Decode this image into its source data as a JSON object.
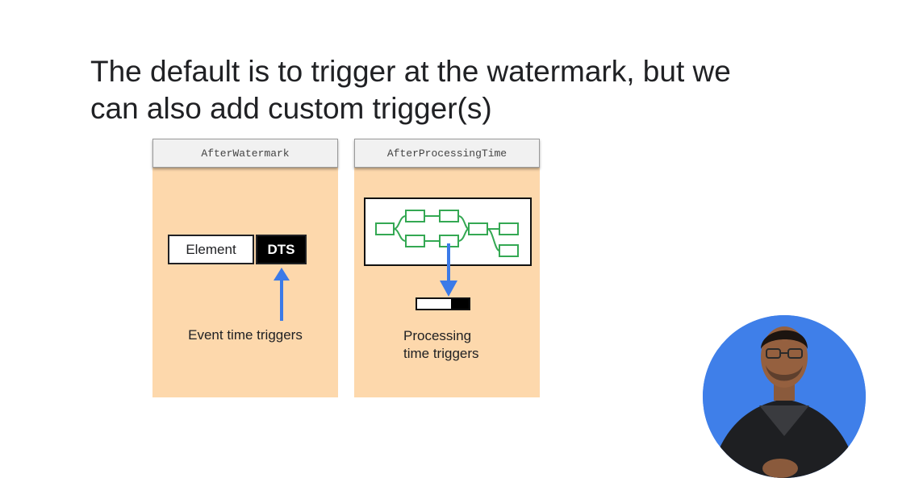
{
  "title": {
    "line1": "The default is to trigger at the watermark, but we",
    "line2": "can also add custom trigger(s)"
  },
  "left_panel": {
    "header": "AfterWatermark",
    "element_label": "Element",
    "dts_label": "DTS",
    "caption": "Event time triggers"
  },
  "right_panel": {
    "header": "AfterProcessingTime",
    "caption_line1": "Processing",
    "caption_line2": "time triggers",
    "progress_fraction": 0.35
  },
  "colors": {
    "panel_bg": "#fdd8ac",
    "arrow": "#3b7ae8",
    "flow_node": "#34a853",
    "presenter_bg": "#3f7fe9"
  }
}
